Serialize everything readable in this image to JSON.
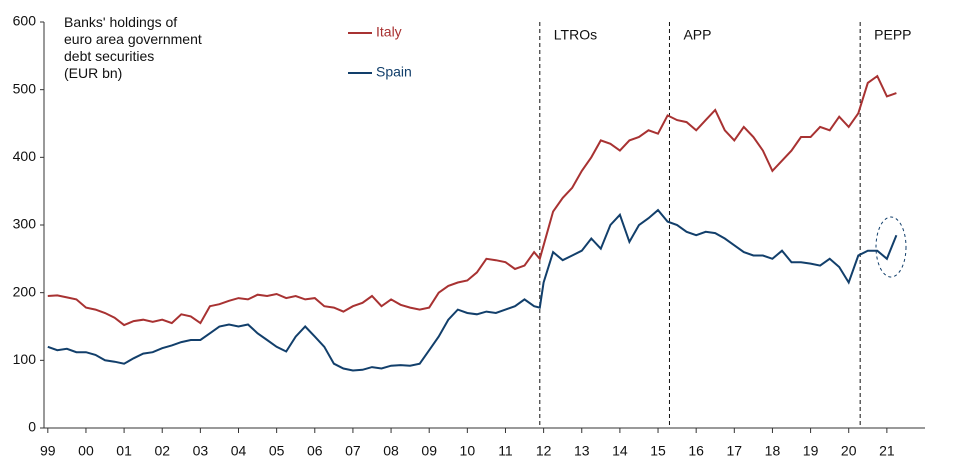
{
  "chart_data": {
    "type": "line",
    "title": [
      "Banks' holdings of",
      "euro area government",
      "debt securities",
      "(EUR bn)"
    ],
    "x": [
      1999.0,
      1999.25,
      1999.5,
      1999.75,
      2000.0,
      2000.25,
      2000.5,
      2000.75,
      2001.0,
      2001.25,
      2001.5,
      2001.75,
      2002.0,
      2002.25,
      2002.5,
      2002.75,
      2003.0,
      2003.25,
      2003.5,
      2003.75,
      2004.0,
      2004.25,
      2004.5,
      2004.75,
      2005.0,
      2005.25,
      2005.5,
      2005.75,
      2006.0,
      2006.25,
      2006.5,
      2006.75,
      2007.0,
      2007.25,
      2007.5,
      2007.75,
      2008.0,
      2008.25,
      2008.5,
      2008.75,
      2009.0,
      2009.25,
      2009.5,
      2009.75,
      2010.0,
      2010.25,
      2010.5,
      2010.75,
      2011.0,
      2011.25,
      2011.5,
      2011.75,
      2011.9,
      2012.0,
      2012.25,
      2012.5,
      2012.75,
      2013.0,
      2013.25,
      2013.5,
      2013.75,
      2014.0,
      2014.25,
      2014.5,
      2014.75,
      2015.0,
      2015.25,
      2015.5,
      2015.75,
      2016.0,
      2016.25,
      2016.5,
      2016.75,
      2017.0,
      2017.25,
      2017.5,
      2017.75,
      2018.0,
      2018.25,
      2018.5,
      2018.75,
      2019.0,
      2019.25,
      2019.5,
      2019.75,
      2020.0,
      2020.25,
      2020.5,
      2020.75,
      2021.0,
      2021.25
    ],
    "series": [
      {
        "name": "Italy",
        "color": "#a83232",
        "values": [
          195,
          196,
          193,
          190,
          178,
          175,
          170,
          163,
          152,
          158,
          160,
          157,
          160,
          155,
          168,
          165,
          155,
          180,
          183,
          188,
          192,
          190,
          197,
          195,
          198,
          192,
          195,
          190,
          192,
          180,
          178,
          172,
          180,
          185,
          195,
          180,
          190,
          182,
          178,
          175,
          178,
          200,
          210,
          215,
          218,
          230,
          250,
          248,
          245,
          235,
          240,
          260,
          250,
          270,
          320,
          340,
          355,
          380,
          400,
          425,
          420,
          410,
          425,
          430,
          440,
          435,
          462,
          455,
          452,
          440,
          455,
          470,
          440,
          425,
          445,
          430,
          410,
          380,
          395,
          410,
          430,
          430,
          445,
          440,
          460,
          445,
          465,
          510,
          520,
          490,
          495
        ]
      },
      {
        "name": "Spain",
        "color": "#123f6b",
        "values": [
          120,
          115,
          117,
          112,
          112,
          108,
          100,
          98,
          95,
          103,
          110,
          112,
          118,
          122,
          127,
          130,
          130,
          140,
          150,
          153,
          150,
          153,
          140,
          130,
          120,
          113,
          135,
          150,
          135,
          120,
          95,
          88,
          85,
          86,
          90,
          88,
          92,
          93,
          92,
          95,
          115,
          135,
          160,
          175,
          170,
          168,
          172,
          170,
          175,
          180,
          190,
          180,
          178,
          215,
          260,
          248,
          255,
          262,
          280,
          265,
          300,
          315,
          275,
          300,
          310,
          322,
          305,
          300,
          290,
          285,
          290,
          288,
          280,
          270,
          260,
          255,
          255,
          250,
          262,
          245,
          245,
          243,
          240,
          250,
          238,
          215,
          255,
          262,
          262,
          250,
          285
        ]
      }
    ],
    "annotations": [
      {
        "x": 2011.9,
        "label": "LTROs"
      },
      {
        "x": 2015.3,
        "label": "APP"
      },
      {
        "x": 2020.3,
        "label": "PEPP"
      }
    ],
    "xlim": [
      1998.9,
      2022.0
    ],
    "xticks": [
      {
        "value": 1999,
        "label": "99"
      },
      {
        "value": 2000,
        "label": "00"
      },
      {
        "value": 2001,
        "label": "01"
      },
      {
        "value": 2002,
        "label": "02"
      },
      {
        "value": 2003,
        "label": "03"
      },
      {
        "value": 2004,
        "label": "04"
      },
      {
        "value": 2005,
        "label": "05"
      },
      {
        "value": 2006,
        "label": "06"
      },
      {
        "value": 2007,
        "label": "07"
      },
      {
        "value": 2008,
        "label": "08"
      },
      {
        "value": 2009,
        "label": "09"
      },
      {
        "value": 2010,
        "label": "10"
      },
      {
        "value": 2011,
        "label": "11"
      },
      {
        "value": 2012,
        "label": "12"
      },
      {
        "value": 2013,
        "label": "13"
      },
      {
        "value": 2014,
        "label": "14"
      },
      {
        "value": 2015,
        "label": "15"
      },
      {
        "value": 2016,
        "label": "16"
      },
      {
        "value": 2017,
        "label": "17"
      },
      {
        "value": 2018,
        "label": "18"
      },
      {
        "value": 2019,
        "label": "19"
      },
      {
        "value": 2020,
        "label": "20"
      },
      {
        "value": 2021,
        "label": "21"
      }
    ],
    "ylim": [
      0,
      600
    ],
    "yticks": [
      0,
      100,
      200,
      300,
      400,
      500,
      600
    ],
    "grid": false
  }
}
